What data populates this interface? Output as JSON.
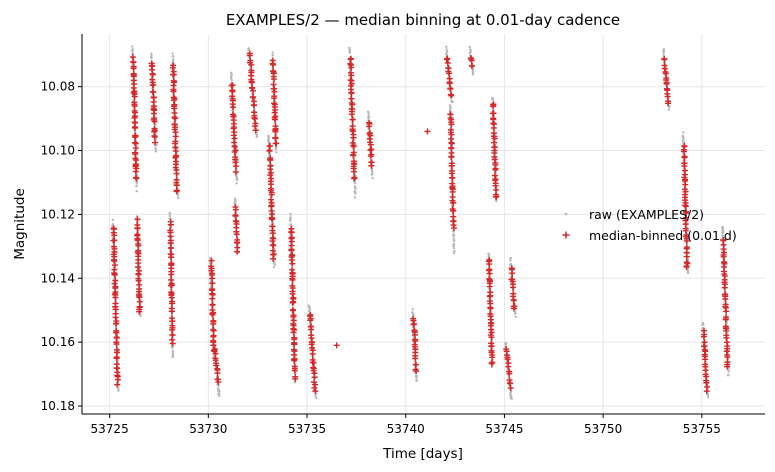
{
  "chart_data": {
    "type": "scatter",
    "title": "EXAMPLES/2 — median binning at 0.01-day cadence",
    "xlabel": "Time [days]",
    "ylabel": "Magnitude",
    "xlim": [
      53723.6,
      53758.2
    ],
    "ylim": [
      10.1825,
      10.0635
    ],
    "y_inverted": true,
    "grid": true,
    "legend_position": "center-right",
    "x_ticks": [
      53725,
      53730,
      53735,
      53740,
      53745,
      53750,
      53755
    ],
    "x_tick_labels": [
      "53725",
      "53730",
      "53735",
      "53740",
      "53745",
      "53750",
      "53755"
    ],
    "y_ticks": [
      10.08,
      10.1,
      10.12,
      10.14,
      10.16,
      10.18
    ],
    "y_tick_labels": [
      "10.08",
      "10.10",
      "10.12",
      "10.14",
      "10.16",
      "10.18"
    ],
    "colors": {
      "raw": "#b8b8b8",
      "binned": "#d62728",
      "grid": "#e6e6e6"
    },
    "series": [
      {
        "name": "raw (EXAMPLES/2)",
        "marker": "dot",
        "segments": [
          {
            "x0": 53725.15,
            "x1": 53725.45,
            "y0": 10.122,
            "y1": 10.175
          },
          {
            "x0": 53726.15,
            "x1": 53726.38,
            "y0": 10.068,
            "y1": 10.112
          },
          {
            "x0": 53726.38,
            "x1": 53726.55,
            "y0": 10.12,
            "y1": 10.152
          },
          {
            "x0": 53727.1,
            "x1": 53727.35,
            "y0": 10.07,
            "y1": 10.1
          },
          {
            "x0": 53728.05,
            "x1": 53728.2,
            "y0": 10.12,
            "y1": 10.165
          },
          {
            "x0": 53728.2,
            "x1": 53728.45,
            "y0": 10.07,
            "y1": 10.115
          },
          {
            "x0": 53730.1,
            "x1": 53730.3,
            "y0": 10.133,
            "y1": 10.165
          },
          {
            "x0": 53730.3,
            "x1": 53730.55,
            "y0": 10.16,
            "y1": 10.177
          },
          {
            "x0": 53731.15,
            "x1": 53731.45,
            "y0": 10.076,
            "y1": 10.11
          },
          {
            "x0": 53731.35,
            "x1": 53731.5,
            "y0": 10.115,
            "y1": 10.132
          },
          {
            "x0": 53732.05,
            "x1": 53732.45,
            "y0": 10.068,
            "y1": 10.096
          },
          {
            "x0": 53733.05,
            "x1": 53733.35,
            "y0": 10.095,
            "y1": 10.136
          },
          {
            "x0": 53733.25,
            "x1": 53733.45,
            "y0": 10.07,
            "y1": 10.1
          },
          {
            "x0": 53734.15,
            "x1": 53734.4,
            "y0": 10.12,
            "y1": 10.172
          },
          {
            "x0": 53735.1,
            "x1": 53735.45,
            "y0": 10.148,
            "y1": 10.177
          },
          {
            "x0": 53737.15,
            "x1": 53737.45,
            "y0": 10.068,
            "y1": 10.114
          },
          {
            "x0": 53738.1,
            "x1": 53738.3,
            "y0": 10.088,
            "y1": 10.108
          },
          {
            "x0": 53740.35,
            "x1": 53740.55,
            "y0": 10.15,
            "y1": 10.172
          },
          {
            "x0": 53742.05,
            "x1": 53742.35,
            "y0": 10.068,
            "y1": 10.085
          },
          {
            "x0": 53742.25,
            "x1": 53742.45,
            "y0": 10.086,
            "y1": 10.132
          },
          {
            "x0": 53743.25,
            "x1": 53743.4,
            "y0": 10.068,
            "y1": 10.076
          },
          {
            "x0": 53744.2,
            "x1": 53744.4,
            "y0": 10.132,
            "y1": 10.168
          },
          {
            "x0": 53744.4,
            "x1": 53744.6,
            "y0": 10.083,
            "y1": 10.116
          },
          {
            "x0": 53745.05,
            "x1": 53745.35,
            "y0": 10.16,
            "y1": 10.178
          },
          {
            "x0": 53745.3,
            "x1": 53745.55,
            "y0": 10.134,
            "y1": 10.152
          },
          {
            "x0": 53753.05,
            "x1": 53753.35,
            "y0": 10.068,
            "y1": 10.087
          },
          {
            "x0": 53754.05,
            "x1": 53754.3,
            "y0": 10.095,
            "y1": 10.138
          },
          {
            "x0": 53755.05,
            "x1": 53755.3,
            "y0": 10.154,
            "y1": 10.177
          },
          {
            "x0": 53756.05,
            "x1": 53756.35,
            "y0": 10.124,
            "y1": 10.17
          }
        ],
        "points": []
      },
      {
        "name": "median-binned (0.01 d)",
        "marker": "plus",
        "segments": [
          {
            "x0": 53725.2,
            "x1": 53725.4,
            "y0": 10.124,
            "y1": 10.173
          },
          {
            "x0": 53726.2,
            "x1": 53726.35,
            "y0": 10.071,
            "y1": 10.109
          },
          {
            "x0": 53726.4,
            "x1": 53726.52,
            "y0": 10.122,
            "y1": 10.151
          },
          {
            "x0": 53727.15,
            "x1": 53727.3,
            "y0": 10.072,
            "y1": 10.097
          },
          {
            "x0": 53728.08,
            "x1": 53728.18,
            "y0": 10.123,
            "y1": 10.16
          },
          {
            "x0": 53728.22,
            "x1": 53728.4,
            "y0": 10.073,
            "y1": 10.113
          },
          {
            "x0": 53730.15,
            "x1": 53730.28,
            "y0": 10.135,
            "y1": 10.163
          },
          {
            "x0": 53730.32,
            "x1": 53730.5,
            "y0": 10.162,
            "y1": 10.173
          },
          {
            "x0": 53731.2,
            "x1": 53731.4,
            "y0": 10.079,
            "y1": 10.106
          },
          {
            "x0": 53731.38,
            "x1": 53731.48,
            "y0": 10.118,
            "y1": 10.131
          },
          {
            "x0": 53732.1,
            "x1": 53732.4,
            "y0": 10.07,
            "y1": 10.093
          },
          {
            "x0": 53733.1,
            "x1": 53733.3,
            "y0": 10.098,
            "y1": 10.134
          },
          {
            "x0": 53733.28,
            "x1": 53733.42,
            "y0": 10.072,
            "y1": 10.098
          },
          {
            "x0": 53734.2,
            "x1": 53734.38,
            "y0": 10.124,
            "y1": 10.171
          },
          {
            "x0": 53735.15,
            "x1": 53735.4,
            "y0": 10.151,
            "y1": 10.175
          },
          {
            "x0": 53737.2,
            "x1": 53737.4,
            "y0": 10.071,
            "y1": 10.109
          },
          {
            "x0": 53738.15,
            "x1": 53738.28,
            "y0": 10.091,
            "y1": 10.105
          },
          {
            "x0": 53740.4,
            "x1": 53740.52,
            "y0": 10.152,
            "y1": 10.169
          },
          {
            "x0": 53742.1,
            "x1": 53742.3,
            "y0": 10.071,
            "y1": 10.083
          },
          {
            "x0": 53742.28,
            "x1": 53742.42,
            "y0": 10.088,
            "y1": 10.124
          },
          {
            "x0": 53743.28,
            "x1": 53743.36,
            "y0": 10.071,
            "y1": 10.074
          },
          {
            "x0": 53744.22,
            "x1": 53744.38,
            "y0": 10.134,
            "y1": 10.167
          },
          {
            "x0": 53744.42,
            "x1": 53744.58,
            "y0": 10.085,
            "y1": 10.115
          },
          {
            "x0": 53745.1,
            "x1": 53745.32,
            "y0": 10.162,
            "y1": 10.174
          },
          {
            "x0": 53745.35,
            "x1": 53745.5,
            "y0": 10.137,
            "y1": 10.15
          },
          {
            "x0": 53753.1,
            "x1": 53753.3,
            "y0": 10.071,
            "y1": 10.085
          },
          {
            "x0": 53754.1,
            "x1": 53754.25,
            "y0": 10.098,
            "y1": 10.137
          },
          {
            "x0": 53755.1,
            "x1": 53755.25,
            "y0": 10.157,
            "y1": 10.175
          },
          {
            "x0": 53756.1,
            "x1": 53756.3,
            "y0": 10.128,
            "y1": 10.168
          }
        ],
        "points": [
          {
            "x": 53736.5,
            "y": 10.161
          },
          {
            "x": 53741.1,
            "y": 10.094
          }
        ]
      }
    ]
  }
}
